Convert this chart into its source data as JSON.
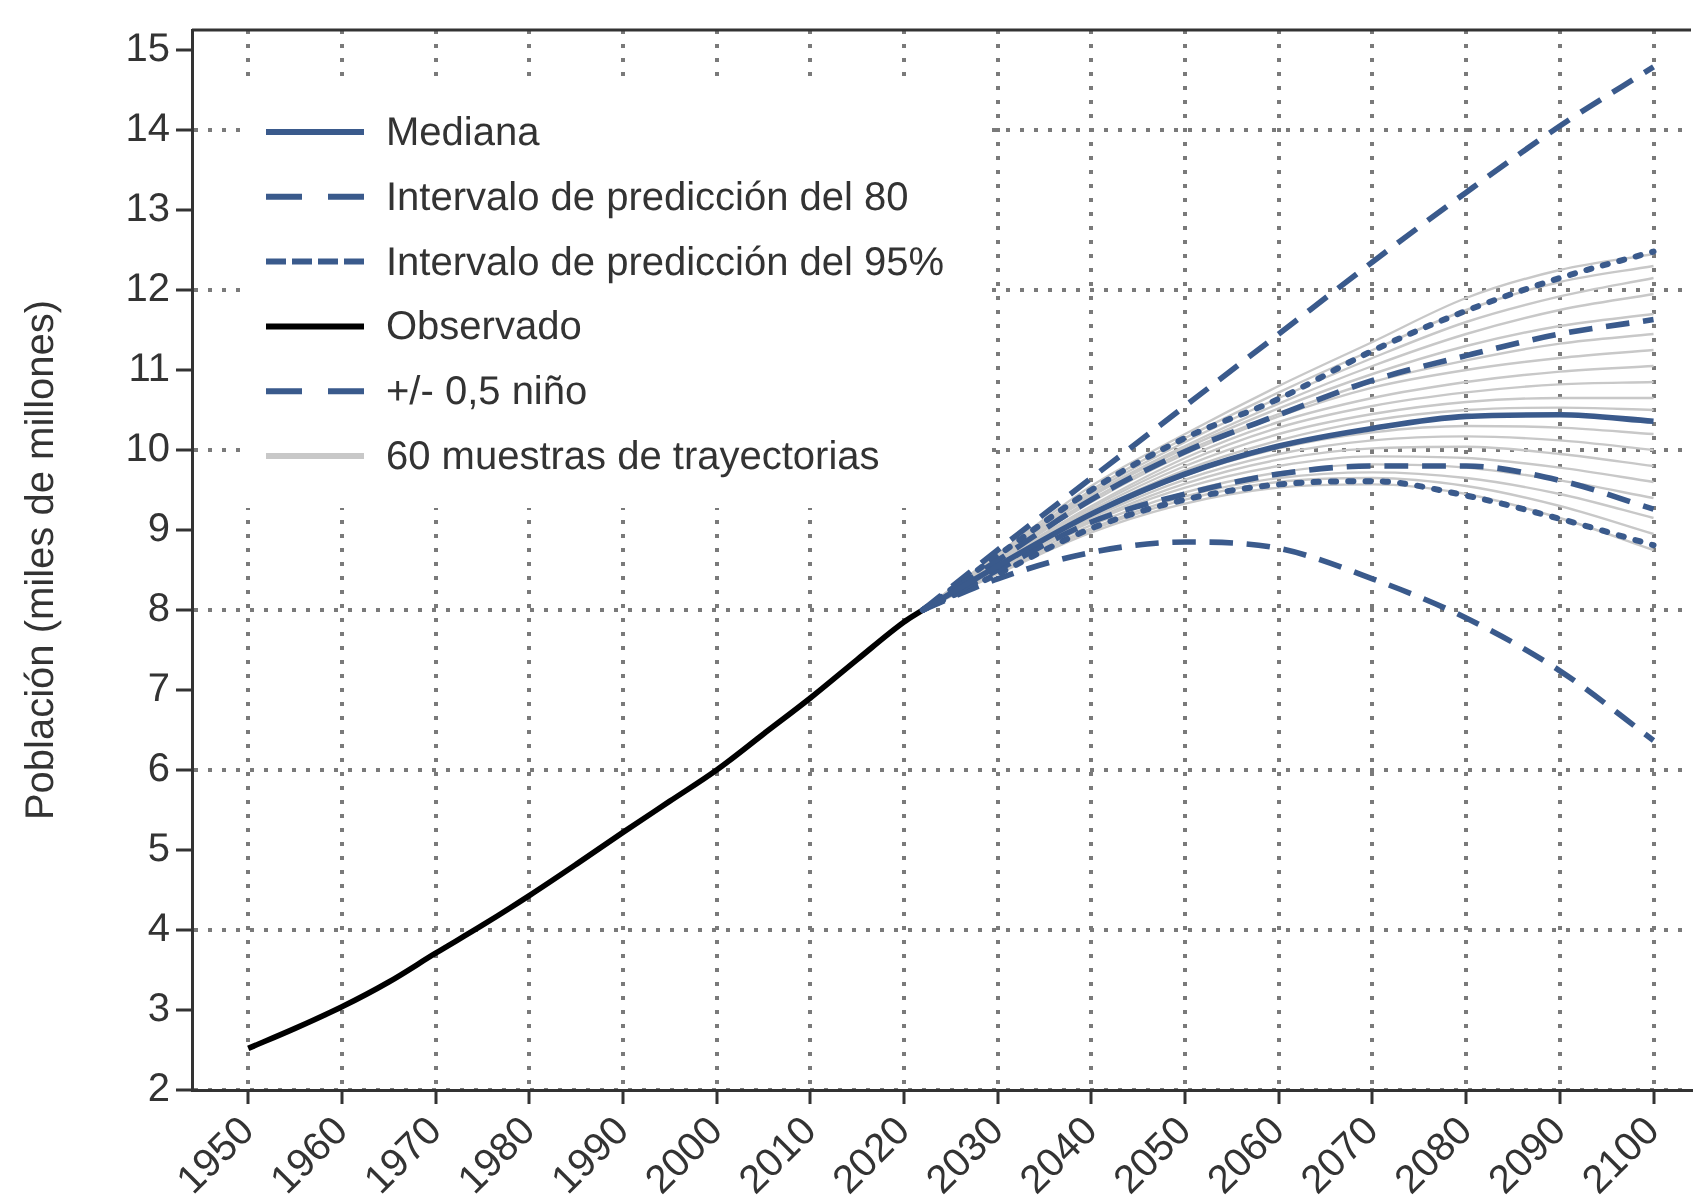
{
  "chart_data": {
    "type": "line",
    "ylabel": "Población (miles de millones)",
    "legend": "top left",
    "grid": true,
    "marker": "none",
    "xlim": [
      1944,
      2104
    ],
    "xticks": [
      1950,
      1960,
      1970,
      1980,
      1990,
      2000,
      2010,
      2020,
      2030,
      2040,
      2050,
      2060,
      2070,
      2080,
      2090,
      2100
    ],
    "ylim": [
      2,
      15.25
    ],
    "yticks": [
      2,
      3,
      4,
      5,
      6,
      7,
      8,
      9,
      10,
      11,
      12,
      13,
      14,
      15
    ],
    "series": [
      {
        "name": "Mediana",
        "color": "#3a5a8c",
        "line_style": "solid",
        "x": [
          2022,
          2030,
          2040,
          2050,
          2060,
          2070,
          2080,
          2090,
          2100
        ],
        "values": [
          8.0,
          8.55,
          9.2,
          9.7,
          10.05,
          10.27,
          10.42,
          10.44,
          10.36
        ]
      },
      {
        "name": "Intervalo de predicción del 80",
        "color": "#3a5a8c",
        "line_style": "dashed",
        "x": [
          2022,
          2030,
          2040,
          2050,
          2060,
          2070,
          2080,
          2090,
          2100
        ],
        "values": [
          8.0,
          8.62,
          9.38,
          9.98,
          10.44,
          10.87,
          11.18,
          11.45,
          11.63
        ]
      },
      {
        "color": "#3a5a8c",
        "line_style": "dashed",
        "x": [
          2022,
          2030,
          2040,
          2050,
          2060,
          2070,
          2080,
          2090,
          2100
        ],
        "values": [
          8.0,
          8.5,
          9.1,
          9.45,
          9.7,
          9.8,
          9.8,
          9.62,
          9.26
        ]
      },
      {
        "name": "Intervalo de predicción del 95%",
        "color": "#3a5a8c",
        "line_style": "dotted",
        "x": [
          2022,
          2030,
          2040,
          2050,
          2060,
          2070,
          2080,
          2090,
          2100
        ],
        "values": [
          8.0,
          8.68,
          9.5,
          10.15,
          10.64,
          11.24,
          11.74,
          12.15,
          12.48
        ]
      },
      {
        "color": "#3a5a8c",
        "line_style": "dotted",
        "x": [
          2022,
          2030,
          2040,
          2050,
          2060,
          2070,
          2080,
          2090,
          2100
        ],
        "values": [
          8.0,
          8.45,
          9.02,
          9.38,
          9.57,
          9.61,
          9.43,
          9.14,
          8.81
        ]
      },
      {
        "name": "Observado",
        "color": "#000000",
        "line_style": "solid",
        "x": [
          1950,
          1955,
          1960,
          1965,
          1970,
          1975,
          1980,
          1985,
          1990,
          1995,
          2000,
          2005,
          2010,
          2015,
          2020,
          2022
        ],
        "values": [
          2.52,
          2.77,
          3.04,
          3.35,
          3.71,
          4.06,
          4.43,
          4.82,
          5.22,
          5.61,
          6.0,
          6.45,
          6.9,
          7.38,
          7.85,
          8.0
        ]
      },
      {
        "name": "+/- 0,5 niño",
        "color": "#3a5a8c",
        "line_style": "dashed",
        "x": [
          2022,
          2030,
          2040,
          2050,
          2060,
          2070,
          2080,
          2090,
          2100
        ],
        "values": [
          8.0,
          8.75,
          9.65,
          10.55,
          11.45,
          12.35,
          13.22,
          14.05,
          14.79
        ]
      },
      {
        "color": "#3a5a8c",
        "line_style": "dashed",
        "x": [
          2022,
          2030,
          2040,
          2050,
          2060,
          2070,
          2080,
          2090,
          2100
        ],
        "values": [
          8.0,
          8.39,
          8.72,
          8.85,
          8.77,
          8.39,
          7.9,
          7.24,
          6.37
        ]
      },
      {
        "name": "60 muestras de trayectorias",
        "color": "#c8c8c8",
        "line_style": "solid",
        "x": [
          2022,
          2030,
          2040,
          2050,
          2060,
          2070,
          2080,
          2090,
          2100
        ],
        "values": [
          8.0,
          8.7,
          9.55,
          10.2,
          10.8,
          11.35,
          11.9,
          12.25,
          12.45
        ]
      },
      {
        "color": "#c8c8c8",
        "line_style": "solid",
        "x": [
          2022,
          2030,
          2040,
          2050,
          2060,
          2070,
          2080,
          2090,
          2100
        ],
        "values": [
          8.0,
          8.68,
          9.5,
          10.15,
          10.72,
          11.25,
          11.75,
          12.1,
          12.3
        ]
      },
      {
        "color": "#c8c8c8",
        "line_style": "solid",
        "x": [
          2022,
          2030,
          2040,
          2050,
          2060,
          2070,
          2080,
          2090,
          2100
        ],
        "values": [
          8.0,
          8.67,
          9.47,
          10.1,
          10.65,
          11.15,
          11.6,
          11.92,
          12.15
        ]
      },
      {
        "color": "#c8c8c8",
        "line_style": "solid",
        "x": [
          2022,
          2030,
          2040,
          2050,
          2060,
          2070,
          2080,
          2090,
          2100
        ],
        "values": [
          8.0,
          8.66,
          9.44,
          10.05,
          10.58,
          11.05,
          11.45,
          11.75,
          11.95
        ]
      },
      {
        "color": "#c8c8c8",
        "line_style": "solid",
        "x": [
          2022,
          2030,
          2040,
          2050,
          2060,
          2070,
          2080,
          2090,
          2100
        ],
        "values": [
          8.0,
          8.65,
          9.42,
          10.02,
          10.52,
          10.95,
          11.3,
          11.55,
          11.7
        ]
      },
      {
        "color": "#c8c8c8",
        "line_style": "solid",
        "x": [
          2022,
          2030,
          2040,
          2050,
          2060,
          2070,
          2080,
          2090,
          2100
        ],
        "values": [
          8.0,
          8.63,
          9.38,
          9.98,
          10.45,
          10.85,
          11.12,
          11.33,
          11.45
        ]
      },
      {
        "color": "#c8c8c8",
        "line_style": "solid",
        "x": [
          2022,
          2030,
          2040,
          2050,
          2060,
          2070,
          2080,
          2090,
          2100
        ],
        "values": [
          8.0,
          8.62,
          9.35,
          9.95,
          10.42,
          10.78,
          11.0,
          11.15,
          11.25
        ]
      },
      {
        "color": "#c8c8c8",
        "line_style": "solid",
        "x": [
          2022,
          2030,
          2040,
          2050,
          2060,
          2070,
          2080,
          2090,
          2100
        ],
        "values": [
          8.0,
          8.6,
          9.3,
          9.9,
          10.35,
          10.65,
          10.85,
          10.98,
          11.05
        ]
      },
      {
        "color": "#c8c8c8",
        "line_style": "solid",
        "x": [
          2022,
          2030,
          2040,
          2050,
          2060,
          2070,
          2080,
          2090,
          2100
        ],
        "values": [
          8.0,
          8.6,
          9.28,
          9.85,
          10.28,
          10.55,
          10.72,
          10.82,
          10.85
        ]
      },
      {
        "color": "#c8c8c8",
        "line_style": "solid",
        "x": [
          2022,
          2030,
          2040,
          2050,
          2060,
          2070,
          2080,
          2090,
          2100
        ],
        "values": [
          8.0,
          8.58,
          9.25,
          9.8,
          10.2,
          10.45,
          10.6,
          10.65,
          10.65
        ]
      },
      {
        "color": "#c8c8c8",
        "line_style": "solid",
        "x": [
          2022,
          2030,
          2040,
          2050,
          2060,
          2070,
          2080,
          2090,
          2100
        ],
        "values": [
          8.0,
          8.57,
          9.22,
          9.75,
          10.12,
          10.37,
          10.5,
          10.53,
          10.5
        ]
      },
      {
        "color": "#c8c8c8",
        "line_style": "solid",
        "x": [
          2022,
          2030,
          2040,
          2050,
          2060,
          2070,
          2080,
          2090,
          2100
        ],
        "values": [
          8.0,
          8.55,
          9.18,
          9.68,
          10.02,
          10.22,
          10.3,
          10.28,
          10.2
        ]
      },
      {
        "color": "#c8c8c8",
        "line_style": "solid",
        "x": [
          2022,
          2030,
          2040,
          2050,
          2060,
          2070,
          2080,
          2090,
          2100
        ],
        "values": [
          8.0,
          8.54,
          9.15,
          9.63,
          9.95,
          10.12,
          10.17,
          10.12,
          10.0
        ]
      },
      {
        "color": "#c8c8c8",
        "line_style": "solid",
        "x": [
          2022,
          2030,
          2040,
          2050,
          2060,
          2070,
          2080,
          2090,
          2100
        ],
        "values": [
          8.0,
          8.53,
          9.12,
          9.58,
          9.88,
          10.02,
          10.04,
          9.95,
          9.8
        ]
      },
      {
        "color": "#c8c8c8",
        "line_style": "solid",
        "x": [
          2022,
          2030,
          2040,
          2050,
          2060,
          2070,
          2080,
          2090,
          2100
        ],
        "values": [
          8.0,
          8.52,
          9.1,
          9.53,
          9.8,
          9.92,
          9.9,
          9.78,
          9.6
        ]
      },
      {
        "color": "#c8c8c8",
        "line_style": "solid",
        "x": [
          2022,
          2030,
          2040,
          2050,
          2060,
          2070,
          2080,
          2090,
          2100
        ],
        "values": [
          8.0,
          8.5,
          9.06,
          9.47,
          9.72,
          9.82,
          9.78,
          9.62,
          9.4
        ]
      },
      {
        "color": "#c8c8c8",
        "line_style": "solid",
        "x": [
          2022,
          2030,
          2040,
          2050,
          2060,
          2070,
          2080,
          2090,
          2100
        ],
        "values": [
          8.0,
          8.48,
          9.02,
          9.42,
          9.65,
          9.72,
          9.65,
          9.45,
          9.15
        ]
      },
      {
        "color": "#c8c8c8",
        "line_style": "solid",
        "x": [
          2022,
          2030,
          2040,
          2050,
          2060,
          2070,
          2080,
          2090,
          2100
        ],
        "values": [
          8.0,
          8.47,
          9.0,
          9.38,
          9.6,
          9.65,
          9.55,
          9.3,
          8.95
        ]
      },
      {
        "color": "#c8c8c8",
        "line_style": "solid",
        "x": [
          2022,
          2030,
          2040,
          2050,
          2060,
          2070,
          2080,
          2090,
          2100
        ],
        "values": [
          8.0,
          8.45,
          8.97,
          9.33,
          9.53,
          9.57,
          9.45,
          9.15,
          8.75
        ]
      }
    ]
  }
}
